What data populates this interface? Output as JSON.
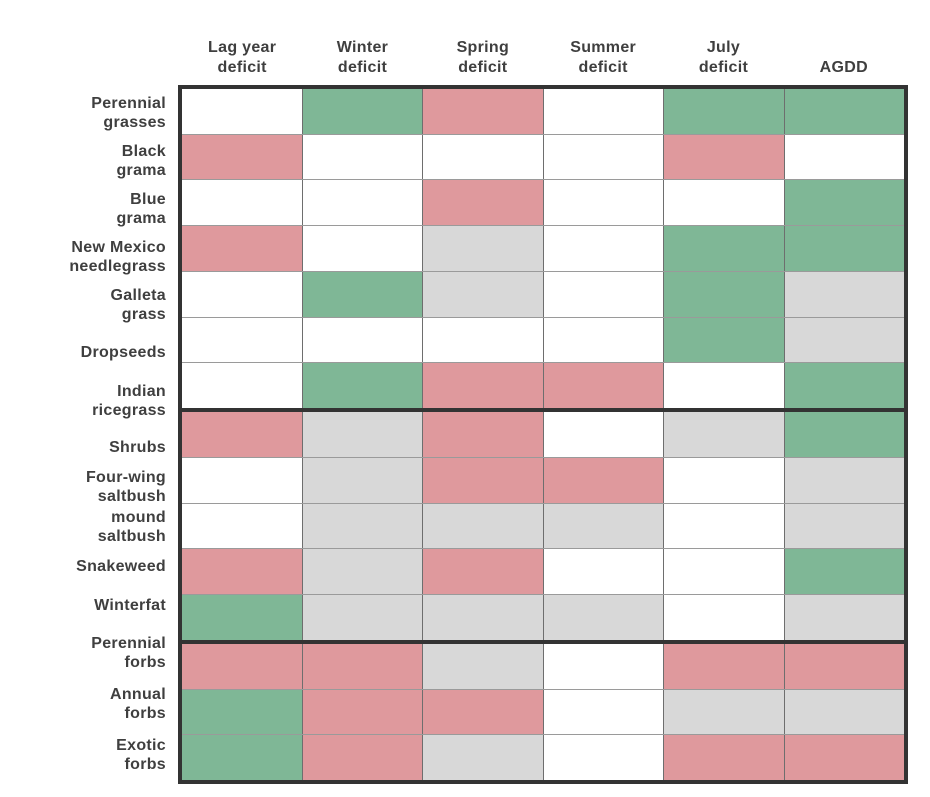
{
  "chart_data": {
    "type": "heatmap",
    "title": "",
    "legend_position": "none",
    "grid": true,
    "columns": [
      "Lag year\ndeficit",
      "Winter\ndeficit",
      "Spring\ndeficit",
      "Summer\ndeficit",
      "July\ndeficit",
      "AGDD"
    ],
    "cell_colors": {
      "green": "#7fb796",
      "red": "#df999d",
      "gray": "#d8d8d8",
      "white": "#ffffff"
    },
    "groups": [
      {
        "rows": [
          {
            "label": "Perennial\ngrasses",
            "cells": [
              "white",
              "green",
              "red",
              "white",
              "green",
              "green"
            ]
          },
          {
            "label": "Black\ngrama",
            "cells": [
              "red",
              "white",
              "white",
              "white",
              "red",
              "white"
            ]
          },
          {
            "label": "Blue\ngrama",
            "cells": [
              "white",
              "white",
              "red",
              "white",
              "white",
              "green"
            ]
          },
          {
            "label": "New Mexico\nneedlegrass",
            "cells": [
              "red",
              "white",
              "gray",
              "white",
              "green",
              "green"
            ]
          },
          {
            "label": "Galleta\ngrass",
            "cells": [
              "white",
              "green",
              "gray",
              "white",
              "green",
              "gray"
            ]
          },
          {
            "label": "Dropseeds",
            "cells": [
              "white",
              "white",
              "white",
              "white",
              "green",
              "gray"
            ]
          },
          {
            "label": "Indian\nricegrass",
            "cells": [
              "white",
              "green",
              "red",
              "red",
              "white",
              "green"
            ]
          }
        ]
      },
      {
        "rows": [
          {
            "label": "Shrubs",
            "cells": [
              "red",
              "gray",
              "red",
              "white",
              "gray",
              "green"
            ]
          },
          {
            "label": "Four-wing\nsaltbush",
            "cells": [
              "white",
              "gray",
              "red",
              "red",
              "white",
              "gray"
            ]
          },
          {
            "label": "mound\nsaltbush",
            "cells": [
              "white",
              "gray",
              "gray",
              "gray",
              "white",
              "gray"
            ]
          },
          {
            "label": "Snakeweed",
            "cells": [
              "red",
              "gray",
              "red",
              "white",
              "white",
              "green"
            ]
          },
          {
            "label": "Winterfat",
            "cells": [
              "green",
              "gray",
              "gray",
              "gray",
              "white",
              "gray"
            ]
          }
        ]
      },
      {
        "rows": [
          {
            "label": "Perennial\nforbs",
            "cells": [
              "red",
              "red",
              "gray",
              "white",
              "red",
              "red"
            ]
          },
          {
            "label": "Annual\nforbs",
            "cells": [
              "green",
              "red",
              "red",
              "white",
              "gray",
              "gray"
            ]
          },
          {
            "label": "Exotic\nforbs",
            "cells": [
              "green",
              "red",
              "gray",
              "white",
              "red",
              "red"
            ]
          }
        ]
      }
    ]
  }
}
